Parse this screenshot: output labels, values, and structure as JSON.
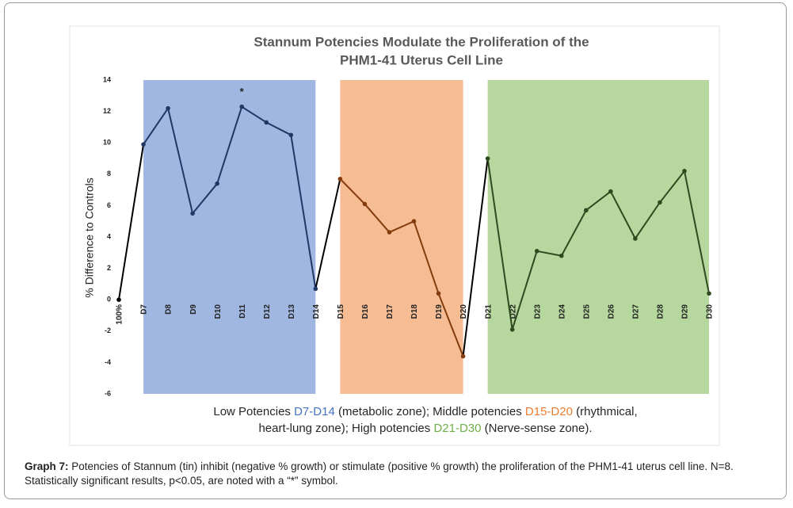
{
  "chart_data": {
    "type": "line",
    "title": [
      "Stannum Potencies Modulate the Proliferation of the",
      "PHM1-41 Uterus Cell Line"
    ],
    "y_label": "% Difference to Controls",
    "categories": [
      "100%",
      "D7",
      "D8",
      "D9",
      "D10",
      "D11",
      "D12",
      "D13",
      "D14",
      "D15",
      "D16",
      "D17",
      "D18",
      "D19",
      "D20",
      "D21",
      "D22",
      "D23",
      "D24",
      "D25",
      "D26",
      "D27",
      "D28",
      "D29",
      "D30"
    ],
    "series": [
      {
        "name": "% Difference to Controls",
        "color": "#000000",
        "values": [
          0,
          9.9,
          12.2,
          5.5,
          7.4,
          12.3,
          11.3,
          10.5,
          0.7,
          7.7,
          6.1,
          4.3,
          5.0,
          0.4,
          -3.6,
          9.0,
          -1.9,
          3.1,
          2.8,
          5.7,
          6.9,
          3.9,
          6.2,
          8.2,
          0.4
        ]
      }
    ],
    "bands": [
      {
        "from": "D7",
        "to": "D14",
        "color": "#8faadc",
        "line_color": "#1f3864"
      },
      {
        "from": "D15",
        "to": "D20",
        "color": "#f4b183",
        "line_color": "#843c0c"
      },
      {
        "from": "D21",
        "to": "D30",
        "color": "#a9d18e",
        "line_color": "#2e4a1e"
      }
    ],
    "annotations": [
      {
        "text": "*",
        "category": "D11"
      }
    ],
    "ylim": [
      -6,
      14
    ],
    "yticks": [
      -6,
      -4,
      -2,
      0,
      2,
      4,
      6,
      8,
      10,
      12,
      14
    ],
    "note": [
      [
        {
          "text": "Low Potencies ",
          "color": "#262626"
        },
        {
          "text": "D7-D14",
          "color": "#4472c4"
        },
        {
          "text": " (metabolic zone); Middle potencies ",
          "color": "#262626"
        },
        {
          "text": "D15-D20",
          "color": "#ed7d31"
        },
        {
          "text": " (rhythmical,",
          "color": "#262626"
        }
      ],
      [
        {
          "text": "heart-lung zone); High potencies ",
          "color": "#262626"
        },
        {
          "text": "D21-D30",
          "color": "#70ad47"
        },
        {
          "text": " (Nerve-sense zone).",
          "color": "#262626"
        }
      ]
    ]
  },
  "caption": {
    "label": "Graph 7:",
    "text": " Potencies of Stannum (tin) inhibit (negative % growth) or stimulate (positive % growth) the proliferation of the PHM1-41 uterus cell line. N=8. Statistically significant results, p<0.05, are noted with a “*” symbol."
  }
}
